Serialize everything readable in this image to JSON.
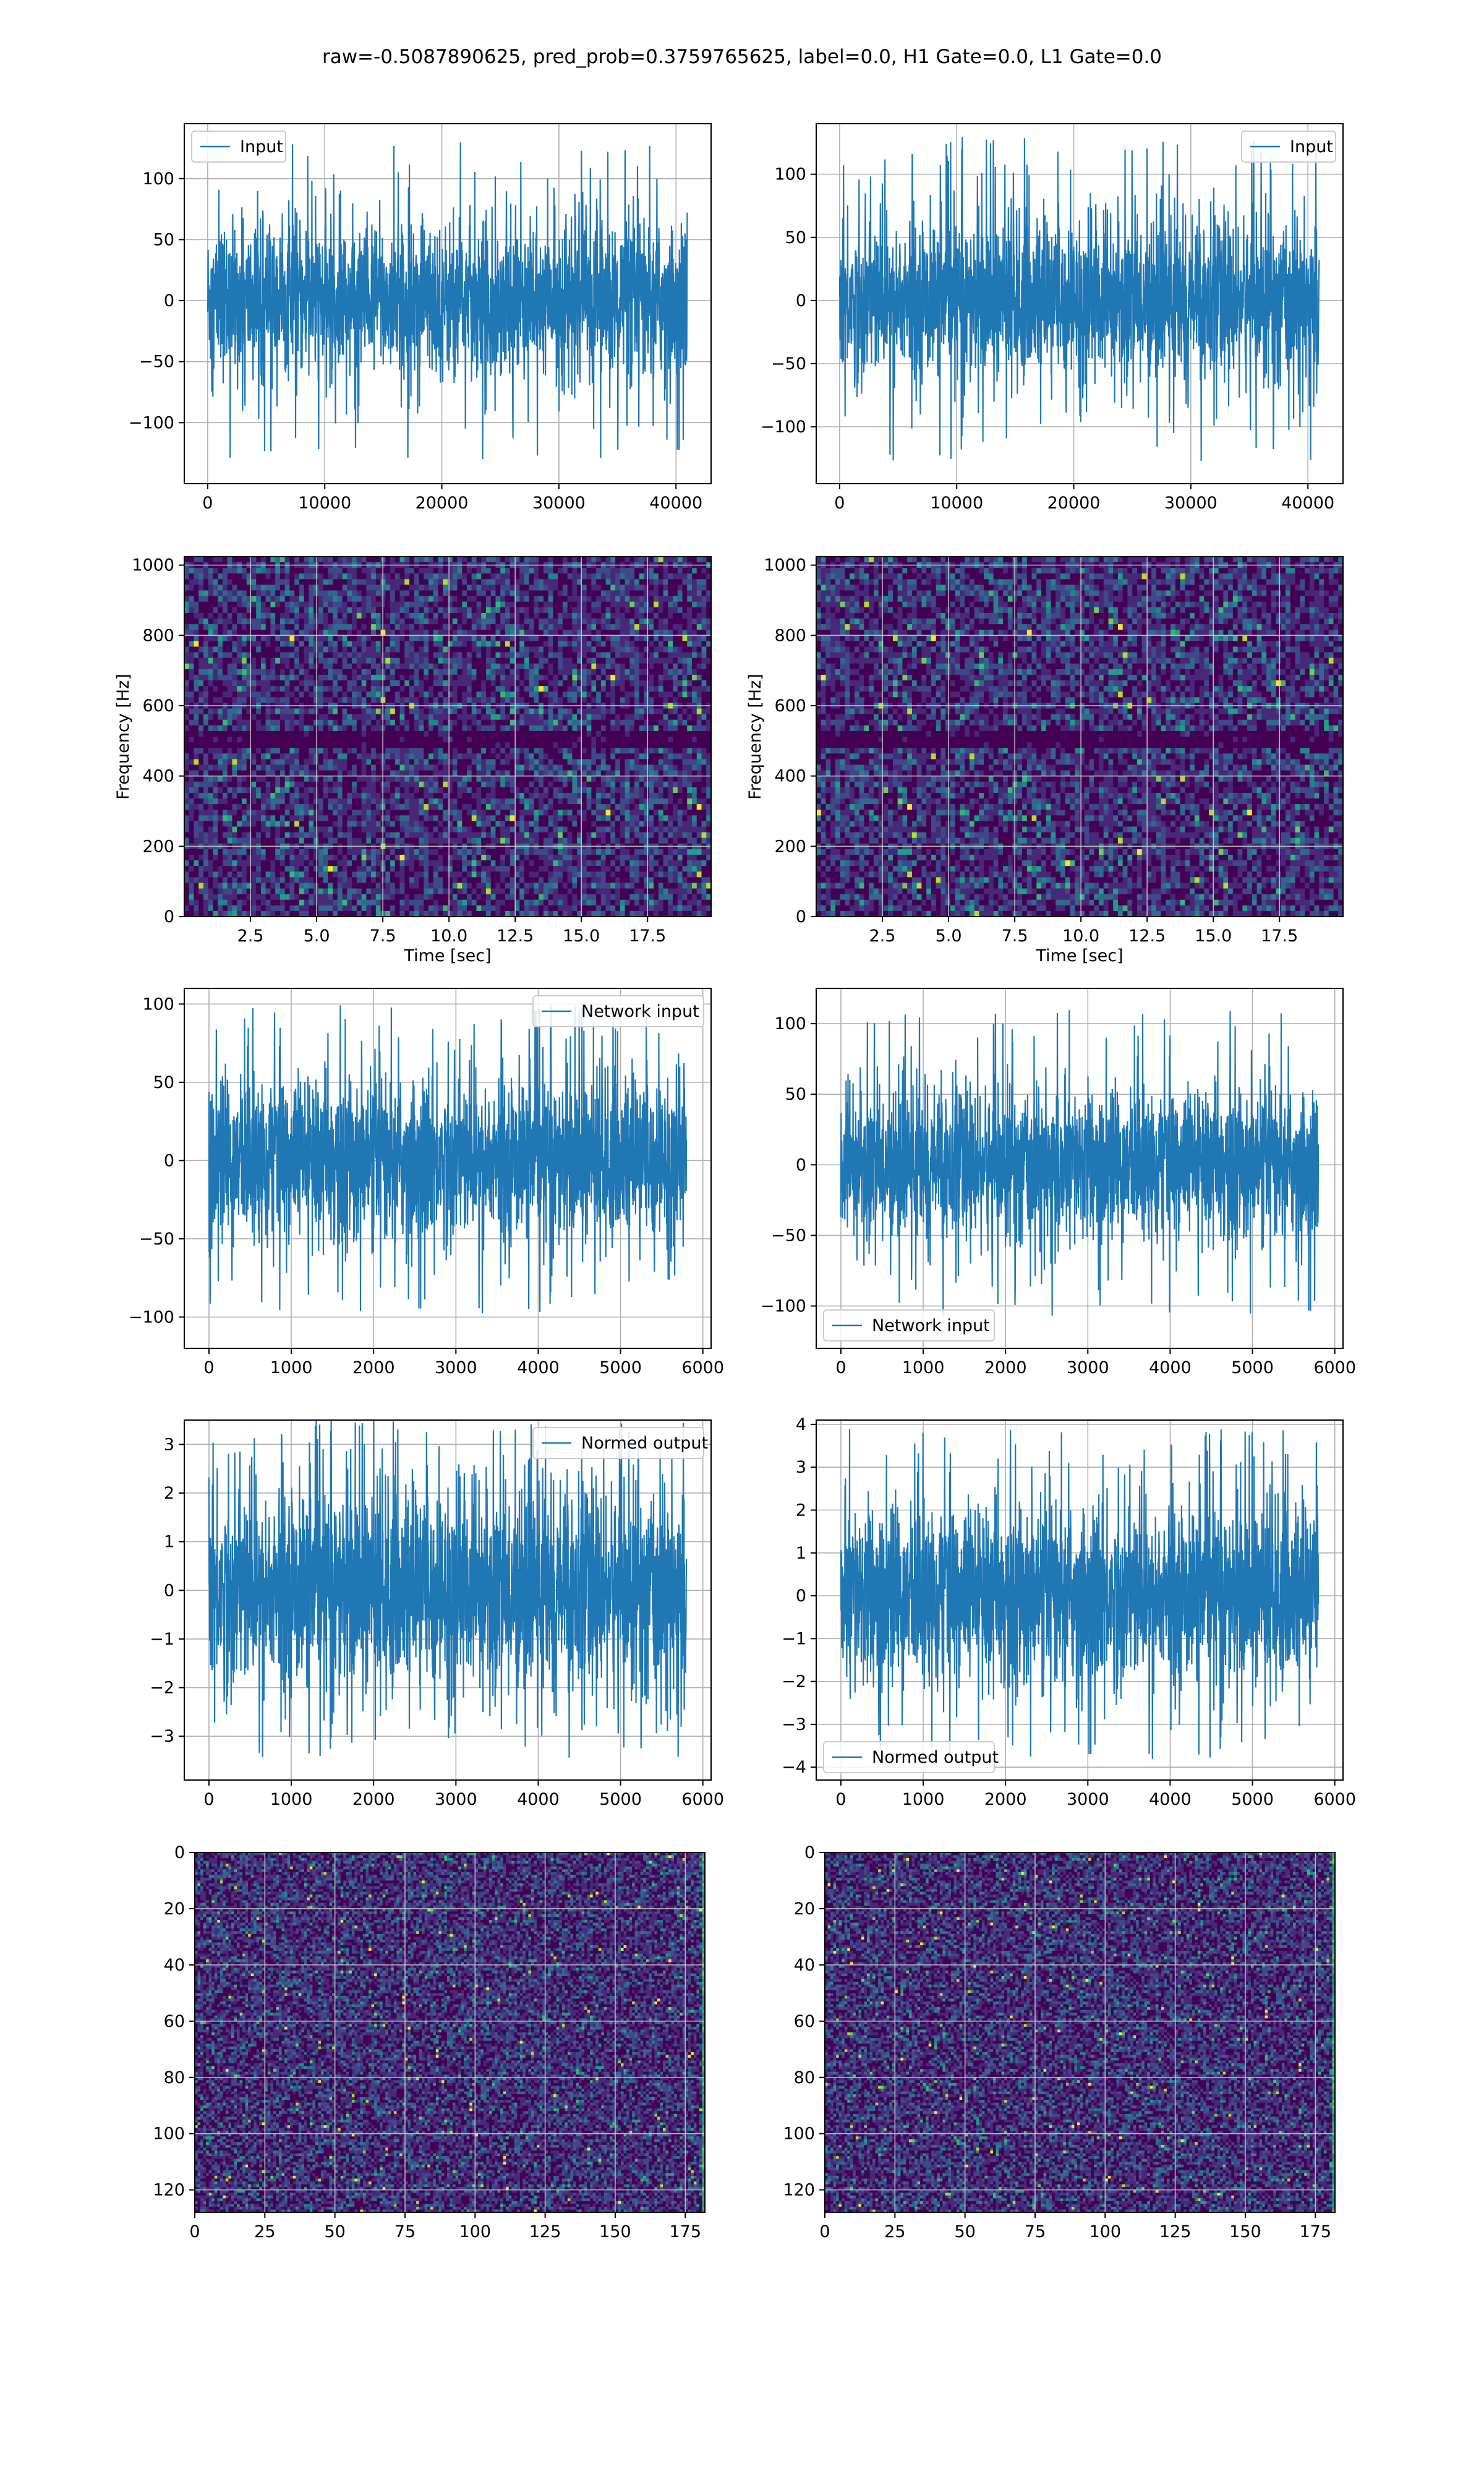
{
  "figure": {
    "suptitle": "raw=-0.5087890625, pred_prob=0.3759765625, label=0.0, H1 Gate=0.0, L1 Gate=0.0"
  },
  "colors": {
    "line": "#1f77b4",
    "grid": "#b0b0b0",
    "viridis": [
      "#440154",
      "#482878",
      "#3e4989",
      "#31688e",
      "#26828e",
      "#1f9e89",
      "#35b779",
      "#6ece58",
      "#b5de2b",
      "#fde725"
    ]
  },
  "chart_data": [
    {
      "id": "h1-input",
      "type": "line",
      "legend_loc": "upper left",
      "series": [
        {
          "name": "Input",
          "n": 40960,
          "amp": 30,
          "spike": 130
        }
      ],
      "xlim": [
        -2000,
        43000
      ],
      "ylim": [
        -150,
        145
      ],
      "xticks": [
        0,
        10000,
        20000,
        30000,
        40000
      ],
      "xtick_labels": [
        "0",
        "10000",
        "20000",
        "30000",
        "40000"
      ],
      "yticks": [
        -100,
        -50,
        0,
        50,
        100
      ],
      "ytick_labels": [
        "−100",
        "−50",
        "0",
        "50",
        "100"
      ],
      "xlabel": "",
      "ylabel": "",
      "grid": true
    },
    {
      "id": "l1-input",
      "type": "line",
      "legend_loc": "upper right",
      "series": [
        {
          "name": "Input",
          "n": 40960,
          "amp": 30,
          "spike": 130
        }
      ],
      "xlim": [
        -2000,
        43000
      ],
      "ylim": [
        -145,
        140
      ],
      "xticks": [
        0,
        10000,
        20000,
        30000,
        40000
      ],
      "xtick_labels": [
        "0",
        "10000",
        "20000",
        "30000",
        "40000"
      ],
      "yticks": [
        -100,
        -50,
        0,
        50,
        100
      ],
      "ytick_labels": [
        "−100",
        "−50",
        "0",
        "50",
        "100"
      ],
      "xlabel": "",
      "ylabel": "",
      "grid": true
    },
    {
      "id": "h1-spectrogram",
      "type": "heatmap",
      "xlim": [
        0,
        19.9
      ],
      "ylim": [
        0,
        1024
      ],
      "xticks": [
        2.5,
        5.0,
        7.5,
        10.0,
        12.5,
        15.0,
        17.5
      ],
      "xtick_labels": [
        "2.5",
        "5.0",
        "7.5",
        "10.0",
        "12.5",
        "15.0",
        "17.5"
      ],
      "yticks": [
        0,
        200,
        400,
        600,
        800,
        1000
      ],
      "ytick_labels": [
        "0",
        "200",
        "400",
        "600",
        "800",
        "1000"
      ],
      "xlabel": "Time [sec]",
      "ylabel": "Frequency [Hz]",
      "grid": true,
      "dark_band_hz": [
        490,
        520
      ],
      "colormap": "viridis"
    },
    {
      "id": "l1-spectrogram",
      "type": "heatmap",
      "xlim": [
        0,
        19.9
      ],
      "ylim": [
        0,
        1024
      ],
      "xticks": [
        2.5,
        5.0,
        7.5,
        10.0,
        12.5,
        15.0,
        17.5
      ],
      "xtick_labels": [
        "2.5",
        "5.0",
        "7.5",
        "10.0",
        "12.5",
        "15.0",
        "17.5"
      ],
      "yticks": [
        0,
        200,
        400,
        600,
        800,
        1000
      ],
      "ytick_labels": [
        "0",
        "200",
        "400",
        "600",
        "800",
        "1000"
      ],
      "xlabel": "Time [sec]",
      "ylabel": "Frequency [Hz]",
      "grid": true,
      "dark_band_hz": [
        490,
        520
      ],
      "colormap": "viridis"
    },
    {
      "id": "h1-network-input",
      "type": "line",
      "legend_loc": "upper right",
      "series": [
        {
          "name": "Network input",
          "n": 5800,
          "amp": 25,
          "spike": 100
        }
      ],
      "xlim": [
        -300,
        6100
      ],
      "ylim": [
        -120,
        110
      ],
      "xticks": [
        0,
        1000,
        2000,
        3000,
        4000,
        5000,
        6000
      ],
      "xtick_labels": [
        "0",
        "1000",
        "2000",
        "3000",
        "4000",
        "5000",
        "6000"
      ],
      "yticks": [
        -100,
        -50,
        0,
        50,
        100
      ],
      "ytick_labels": [
        "−100",
        "−50",
        "0",
        "50",
        "100"
      ],
      "xlabel": "",
      "ylabel": "",
      "grid": true
    },
    {
      "id": "l1-network-input",
      "type": "line",
      "legend_loc": "lower left",
      "series": [
        {
          "name": "Network input",
          "n": 5800,
          "amp": 25,
          "spike": 110
        }
      ],
      "xlim": [
        -300,
        6100
      ],
      "ylim": [
        -130,
        125
      ],
      "xticks": [
        0,
        1000,
        2000,
        3000,
        4000,
        5000,
        6000
      ],
      "xtick_labels": [
        "0",
        "1000",
        "2000",
        "3000",
        "4000",
        "5000",
        "6000"
      ],
      "yticks": [
        -100,
        -50,
        0,
        50,
        100
      ],
      "ytick_labels": [
        "−100",
        "−50",
        "0",
        "50",
        "100"
      ],
      "xlabel": "",
      "ylabel": "",
      "grid": true
    },
    {
      "id": "h1-normed-output",
      "type": "line",
      "legend_loc": "upper right",
      "series": [
        {
          "name": "Normed output",
          "n": 5800,
          "amp": 1,
          "spike": 3.5
        }
      ],
      "xlim": [
        -300,
        6100
      ],
      "ylim": [
        -3.9,
        3.5
      ],
      "xticks": [
        0,
        1000,
        2000,
        3000,
        4000,
        5000,
        6000
      ],
      "xtick_labels": [
        "0",
        "1000",
        "2000",
        "3000",
        "4000",
        "5000",
        "6000"
      ],
      "yticks": [
        -3,
        -2,
        -1,
        0,
        1,
        2,
        3
      ],
      "ytick_labels": [
        "−3",
        "−2",
        "−1",
        "0",
        "1",
        "2",
        "3"
      ],
      "xlabel": "",
      "ylabel": "",
      "grid": true
    },
    {
      "id": "l1-normed-output",
      "type": "line",
      "legend_loc": "lower left",
      "series": [
        {
          "name": "Normed output",
          "n": 5800,
          "amp": 1,
          "spike": 3.9
        }
      ],
      "xlim": [
        -300,
        6100
      ],
      "ylim": [
        -4.3,
        4.1
      ],
      "xticks": [
        0,
        1000,
        2000,
        3000,
        4000,
        5000,
        6000
      ],
      "xtick_labels": [
        "0",
        "1000",
        "2000",
        "3000",
        "4000",
        "5000",
        "6000"
      ],
      "yticks": [
        -4,
        -3,
        -2,
        -1,
        0,
        1,
        2,
        3,
        4
      ],
      "ytick_labels": [
        "−4",
        "−3",
        "−2",
        "−1",
        "0",
        "1",
        "2",
        "3",
        "4"
      ],
      "xlabel": "",
      "ylabel": "",
      "grid": true
    },
    {
      "id": "h1-image",
      "type": "heatmap",
      "xlim": [
        0,
        182
      ],
      "ylim": [
        128,
        0
      ],
      "xticks": [
        0,
        25,
        50,
        75,
        100,
        125,
        150,
        175
      ],
      "xtick_labels": [
        "0",
        "25",
        "50",
        "75",
        "100",
        "125",
        "150",
        "175"
      ],
      "yticks": [
        0,
        20,
        40,
        60,
        80,
        100,
        120
      ],
      "ytick_labels": [
        "0",
        "20",
        "40",
        "60",
        "80",
        "100",
        "120"
      ],
      "xlabel": "",
      "ylabel": "",
      "grid": true,
      "shape": [
        128,
        182
      ],
      "colormap": "viridis"
    },
    {
      "id": "l1-image",
      "type": "heatmap",
      "xlim": [
        0,
        182
      ],
      "ylim": [
        128,
        0
      ],
      "xticks": [
        0,
        25,
        50,
        75,
        100,
        125,
        150,
        175
      ],
      "xtick_labels": [
        "0",
        "25",
        "50",
        "75",
        "100",
        "125",
        "150",
        "175"
      ],
      "yticks": [
        0,
        20,
        40,
        60,
        80,
        100,
        120
      ],
      "ytick_labels": [
        "0",
        "20",
        "40",
        "60",
        "80",
        "100",
        "120"
      ],
      "xlabel": "",
      "ylabel": "",
      "grid": true,
      "shape": [
        128,
        182
      ],
      "colormap": "viridis"
    }
  ]
}
